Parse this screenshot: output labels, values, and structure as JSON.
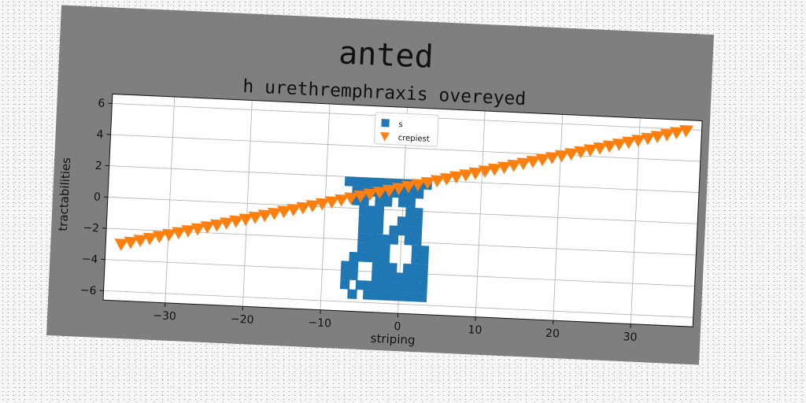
{
  "chart_data": {
    "type": "scatter",
    "title": "anted",
    "subtitle": "h urethremphraxis overeyed",
    "xlabel": "striping",
    "ylabel": "tractabilities",
    "xlim": [
      -38,
      38
    ],
    "ylim": [
      -6.6,
      6.6
    ],
    "xticks": [
      -30,
      -20,
      -10,
      0,
      10,
      20,
      30
    ],
    "yticks": [
      -6,
      -4,
      -2,
      0,
      2,
      4,
      6
    ],
    "grid": true,
    "legend": "top-center",
    "series": [
      {
        "name": "s",
        "marker": "square",
        "color": "#1f77b4",
        "x": [
          -7,
          -6,
          -5,
          -4,
          -3,
          -2,
          -1,
          0,
          1,
          2,
          3,
          -6,
          -5,
          -4,
          -3,
          -2,
          -1,
          0,
          1,
          2,
          -6,
          -5,
          -3,
          -2,
          0,
          1,
          -5,
          -4,
          -3,
          1,
          2,
          -5,
          -4,
          -3,
          0,
          1,
          2,
          -5,
          -4,
          -3,
          -1,
          0,
          1,
          2,
          -5,
          -4,
          -3,
          -2,
          -1,
          1,
          2,
          -5,
          -4,
          -3,
          -2,
          2,
          3,
          -6,
          -5,
          -4,
          -3,
          -2,
          2,
          3,
          -7,
          -6,
          -3,
          -2,
          -1,
          1,
          2,
          3,
          -7,
          -6,
          -3,
          -2,
          -1,
          0,
          1,
          2,
          3,
          -7,
          -5,
          -4,
          -3,
          -2,
          -1,
          0,
          1,
          2,
          3,
          -6,
          -4,
          -3,
          -2,
          -1,
          0,
          1,
          2,
          3
        ],
        "y": [
          1.7,
          1.7,
          1.7,
          1.7,
          1.7,
          1.7,
          1.7,
          1.7,
          1.7,
          1.7,
          1.7,
          1.1,
          1.1,
          1.1,
          1.1,
          1.1,
          1.1,
          1.1,
          1.1,
          1.1,
          0.5,
          0.5,
          0.5,
          0.5,
          0.5,
          0.5,
          -0.1,
          -0.1,
          -0.1,
          -0.1,
          -0.1,
          -0.7,
          -0.7,
          -0.7,
          -0.7,
          -0.7,
          -0.7,
          -1.3,
          -1.3,
          -1.3,
          -1.3,
          -1.3,
          -1.3,
          -1.3,
          -1.9,
          -1.9,
          -1.9,
          -1.9,
          -1.9,
          -1.9,
          -1.9,
          -2.5,
          -2.5,
          -2.5,
          -2.5,
          -2.5,
          -2.5,
          -3.1,
          -3.1,
          -3.1,
          -3.1,
          -3.1,
          -3.1,
          -3.1,
          -3.7,
          -3.7,
          -3.7,
          -3.7,
          -3.7,
          -3.7,
          -3.7,
          -3.7,
          -4.3,
          -4.3,
          -4.3,
          -4.3,
          -4.3,
          -4.3,
          -4.3,
          -4.3,
          -4.3,
          -4.9,
          -4.9,
          -4.9,
          -4.9,
          -4.9,
          -4.9,
          -4.9,
          -4.9,
          -4.9,
          -4.9,
          -5.5,
          -5.5,
          -5.5,
          -5.5,
          -5.5,
          -5.5,
          -5.5,
          -5.5,
          -5.5
        ]
      },
      {
        "name": "crepiest",
        "marker": "triangle-down",
        "color": "#ff7f0e",
        "x_start": -36,
        "x_end": 36,
        "count": 60,
        "y_start": -3.0,
        "y_end": 5.9
      }
    ]
  }
}
